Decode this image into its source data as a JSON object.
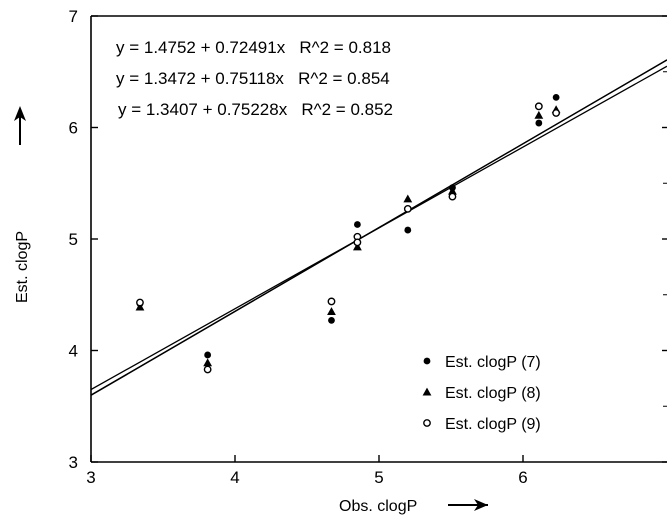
{
  "chart_data": {
    "type": "scatter",
    "xlabel": "Obs. clogP",
    "ylabel": "Est. clogP",
    "xlim": [
      3,
      7
    ],
    "ylim": [
      3,
      7
    ],
    "x_ticks": [
      3,
      4,
      5,
      6
    ],
    "y_ticks": [
      3,
      4,
      5,
      6,
      7
    ],
    "grid": false,
    "legend_position": "bottom-right",
    "equations": [
      "y = 1.4752 + 0.72491x   R^2 = 0.818",
      "y = 1.3472 + 0.75118x   R^2 = 0.854",
      "y = 1.3407 + 0.75228x   R^2 = 0.852"
    ],
    "fits": [
      {
        "intercept": 1.4752,
        "slope": 0.72491
      },
      {
        "intercept": 1.3472,
        "slope": 0.75118
      },
      {
        "intercept": 1.3407,
        "slope": 0.75228
      }
    ],
    "series": [
      {
        "name": "Est. clogP (7)",
        "marker": "filled-circle",
        "points": [
          [
            3.34,
            4.42
          ],
          [
            3.81,
            3.96
          ],
          [
            4.67,
            4.27
          ],
          [
            4.85,
            5.13
          ],
          [
            4.85,
            4.97
          ],
          [
            5.2,
            5.08
          ],
          [
            5.51,
            5.46
          ],
          [
            6.11,
            6.04
          ],
          [
            6.23,
            6.27
          ]
        ]
      },
      {
        "name": "Est. clogP (8)",
        "marker": "filled-triangle",
        "points": [
          [
            3.34,
            4.39
          ],
          [
            3.81,
            3.89
          ],
          [
            4.67,
            4.35
          ],
          [
            4.85,
            4.93
          ],
          [
            5.2,
            5.36
          ],
          [
            5.51,
            5.43
          ],
          [
            6.11,
            6.11
          ],
          [
            6.23,
            6.16
          ]
        ]
      },
      {
        "name": "Est. clogP (9)",
        "marker": "open-circle",
        "points": [
          [
            3.34,
            4.43
          ],
          [
            3.81,
            3.83
          ],
          [
            4.67,
            4.44
          ],
          [
            4.85,
            5.02
          ],
          [
            4.85,
            4.97
          ],
          [
            5.2,
            5.27
          ],
          [
            5.51,
            5.38
          ],
          [
            6.11,
            6.19
          ],
          [
            6.23,
            6.13
          ]
        ]
      }
    ]
  },
  "arrows": {
    "x_arrow": "→",
    "y_arrow": "↑"
  }
}
